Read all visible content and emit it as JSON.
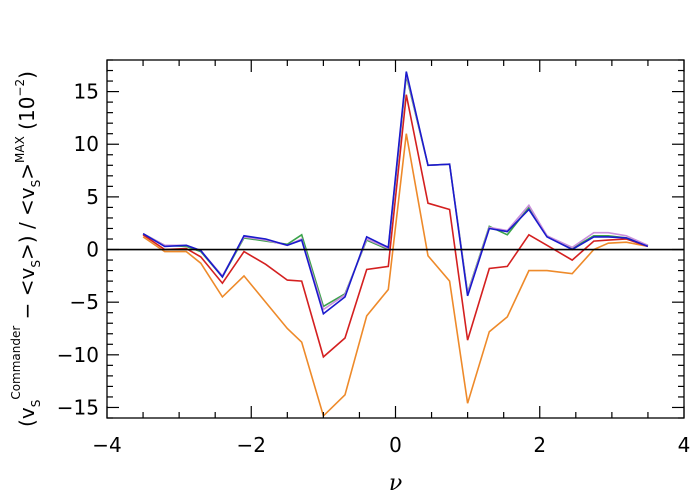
{
  "chart_data": {
    "type": "line",
    "title": "",
    "xlabel": "ν",
    "ylabel": {
      "open": "(v",
      "sub1": "S",
      "sup1": "Commander",
      "mid1": " − <v",
      "sub2": "S",
      "mid2": ">) / <v",
      "sub3": "S",
      "mid3": ">",
      "sup2": "MAX",
      "scale": "  (10",
      "scale_exp": "−2",
      "close": ")"
    },
    "xlim": [
      -4,
      4
    ],
    "ylim": [
      -16,
      18
    ],
    "xticks": [
      -4,
      -2,
      0,
      2,
      4
    ],
    "xtick_labels": [
      "−4",
      "−2",
      "0",
      "2",
      "4"
    ],
    "yticks": [
      -15,
      -10,
      -5,
      0,
      5,
      10,
      15
    ],
    "ytick_labels": [
      "−15",
      "−10",
      "−5",
      "0",
      "5",
      "10",
      "15"
    ],
    "reference_line": 0,
    "x": [
      -3.5,
      -3.2,
      -2.9,
      -2.7,
      -2.4,
      -2.1,
      -1.8,
      -1.5,
      -1.3,
      -1.0,
      -0.7,
      -0.4,
      -0.1,
      0.15,
      0.45,
      0.75,
      1.0,
      1.3,
      1.55,
      1.85,
      2.1,
      2.45,
      2.75,
      2.95,
      3.2,
      3.5
    ],
    "series": [
      {
        "color": "#ee8a2a",
        "values": [
          1.2,
          -0.2,
          -0.2,
          -1.3,
          -4.5,
          -2.5,
          -5.0,
          -7.5,
          -8.8,
          -15.8,
          -13.8,
          -6.3,
          -3.8,
          11.0,
          -0.6,
          -3.0,
          -14.6,
          -7.8,
          -6.4,
          -2.0,
          -2.0,
          -2.3,
          0.0,
          0.6,
          0.7,
          0.3
        ]
      },
      {
        "color": "#d42020",
        "values": [
          1.4,
          0.0,
          0.1,
          -0.7,
          -3.2,
          -0.2,
          -1.4,
          -2.9,
          -3.0,
          -10.2,
          -8.4,
          -1.9,
          -1.6,
          14.7,
          4.4,
          3.8,
          -8.6,
          -1.8,
          -1.6,
          1.4,
          0.4,
          -1.0,
          0.8,
          0.9,
          1.0,
          0.3
        ]
      },
      {
        "color": "#3aa34a",
        "values": [
          1.5,
          0.4,
          0.3,
          -0.2,
          -2.6,
          1.1,
          0.8,
          0.5,
          1.4,
          -5.4,
          -4.2,
          0.9,
          0.0,
          16.5,
          8.0,
          8.1,
          -4.1,
          2.2,
          1.4,
          4.0,
          1.3,
          0.1,
          1.3,
          1.3,
          1.1,
          0.4
        ]
      },
      {
        "color": "#c98fdc",
        "values": [
          1.5,
          0.4,
          0.4,
          -0.1,
          -2.5,
          1.2,
          0.9,
          0.4,
          1.0,
          -5.7,
          -4.3,
          1.0,
          0.1,
          16.7,
          8.0,
          8.1,
          -4.2,
          2.1,
          1.8,
          4.2,
          1.3,
          0.2,
          1.6,
          1.6,
          1.3,
          0.4
        ]
      },
      {
        "color": "#1a1acc",
        "values": [
          1.5,
          0.3,
          0.4,
          -0.1,
          -2.6,
          1.3,
          1.0,
          0.4,
          0.9,
          -6.1,
          -4.5,
          1.2,
          0.2,
          16.9,
          8.0,
          8.1,
          -4.4,
          2.0,
          1.7,
          3.8,
          1.2,
          0.0,
          1.2,
          1.2,
          1.1,
          0.3
        ]
      }
    ],
    "grid": false,
    "legend": false
  }
}
